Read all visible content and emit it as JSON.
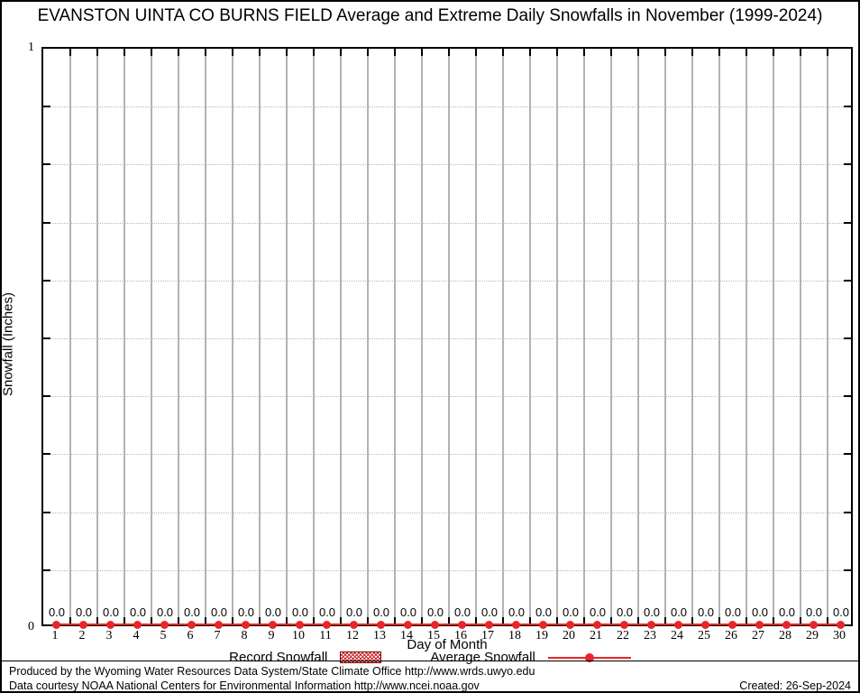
{
  "title": "EVANSTON UINTA CO BURNS FIELD Average and Extreme Daily Snowfalls in November (1999-2024)",
  "axes": {
    "y_label": "Snowfall (Inches)",
    "x_label": "Day of Month",
    "y_top_tick_label": "1",
    "y_bottom_tick_label": "0"
  },
  "legend": {
    "record_label": "Record Snowfall",
    "average_label": "Average Snowfall"
  },
  "footer": {
    "line1": "Produced by the Wyoming Water Resources Data System/State Climate Office http://www.wrds.uwyo.edu",
    "line2": "Data courtesy NOAA National Centers for Environmental Information http://www.ncei.noaa.gov",
    "created": "Created: 26-Sep-2024"
  },
  "colors": {
    "series_red": "#e82528",
    "record_box_border": "#7a0000",
    "grid_vertical": "#b3b3b3",
    "grid_horizontal_dotted": "#b9b9b9",
    "axis": "#000000"
  },
  "chart_data": {
    "type": "line",
    "title": "EVANSTON UINTA CO BURNS FIELD Average and Extreme Daily Snowfalls in November (1999-2024)",
    "xlabel": "Day of Month",
    "ylabel": "Snowfall (Inches)",
    "xlim": [
      0.5,
      30.5
    ],
    "ylim": [
      0,
      1
    ],
    "y_major_tick_labels": [
      "0",
      "1"
    ],
    "y_minor_tick_interval": 0.1,
    "grid": "vertical solid at day boundaries, horizontal dotted at 0.1 intervals",
    "legend_position": "bottom-center",
    "categories": [
      1,
      2,
      3,
      4,
      5,
      6,
      7,
      8,
      9,
      10,
      11,
      12,
      13,
      14,
      15,
      16,
      17,
      18,
      19,
      20,
      21,
      22,
      23,
      24,
      25,
      26,
      27,
      28,
      29,
      30
    ],
    "series": [
      {
        "name": "Record Snowfall",
        "style": "bar-hatched",
        "values": [
          0,
          0,
          0,
          0,
          0,
          0,
          0,
          0,
          0,
          0,
          0,
          0,
          0,
          0,
          0,
          0,
          0,
          0,
          0,
          0,
          0,
          0,
          0,
          0,
          0,
          0,
          0,
          0,
          0,
          0
        ]
      },
      {
        "name": "Average Snowfall",
        "style": "line-with-points",
        "values": [
          0,
          0,
          0,
          0,
          0,
          0,
          0,
          0,
          0,
          0,
          0,
          0,
          0,
          0,
          0,
          0,
          0,
          0,
          0,
          0,
          0,
          0,
          0,
          0,
          0,
          0,
          0,
          0,
          0,
          0
        ]
      }
    ],
    "point_labels": [
      "0.0",
      "0.0",
      "0.0",
      "0.0",
      "0.0",
      "0.0",
      "0.0",
      "0.0",
      "0.0",
      "0.0",
      "0.0",
      "0.0",
      "0.0",
      "0.0",
      "0.0",
      "0.0",
      "0.0",
      "0.0",
      "0.0",
      "0.0",
      "0.0",
      "0.0",
      "0.0",
      "0.0",
      "0.0",
      "0.0",
      "0.0",
      "0.0",
      "0.0",
      "0.0"
    ]
  }
}
